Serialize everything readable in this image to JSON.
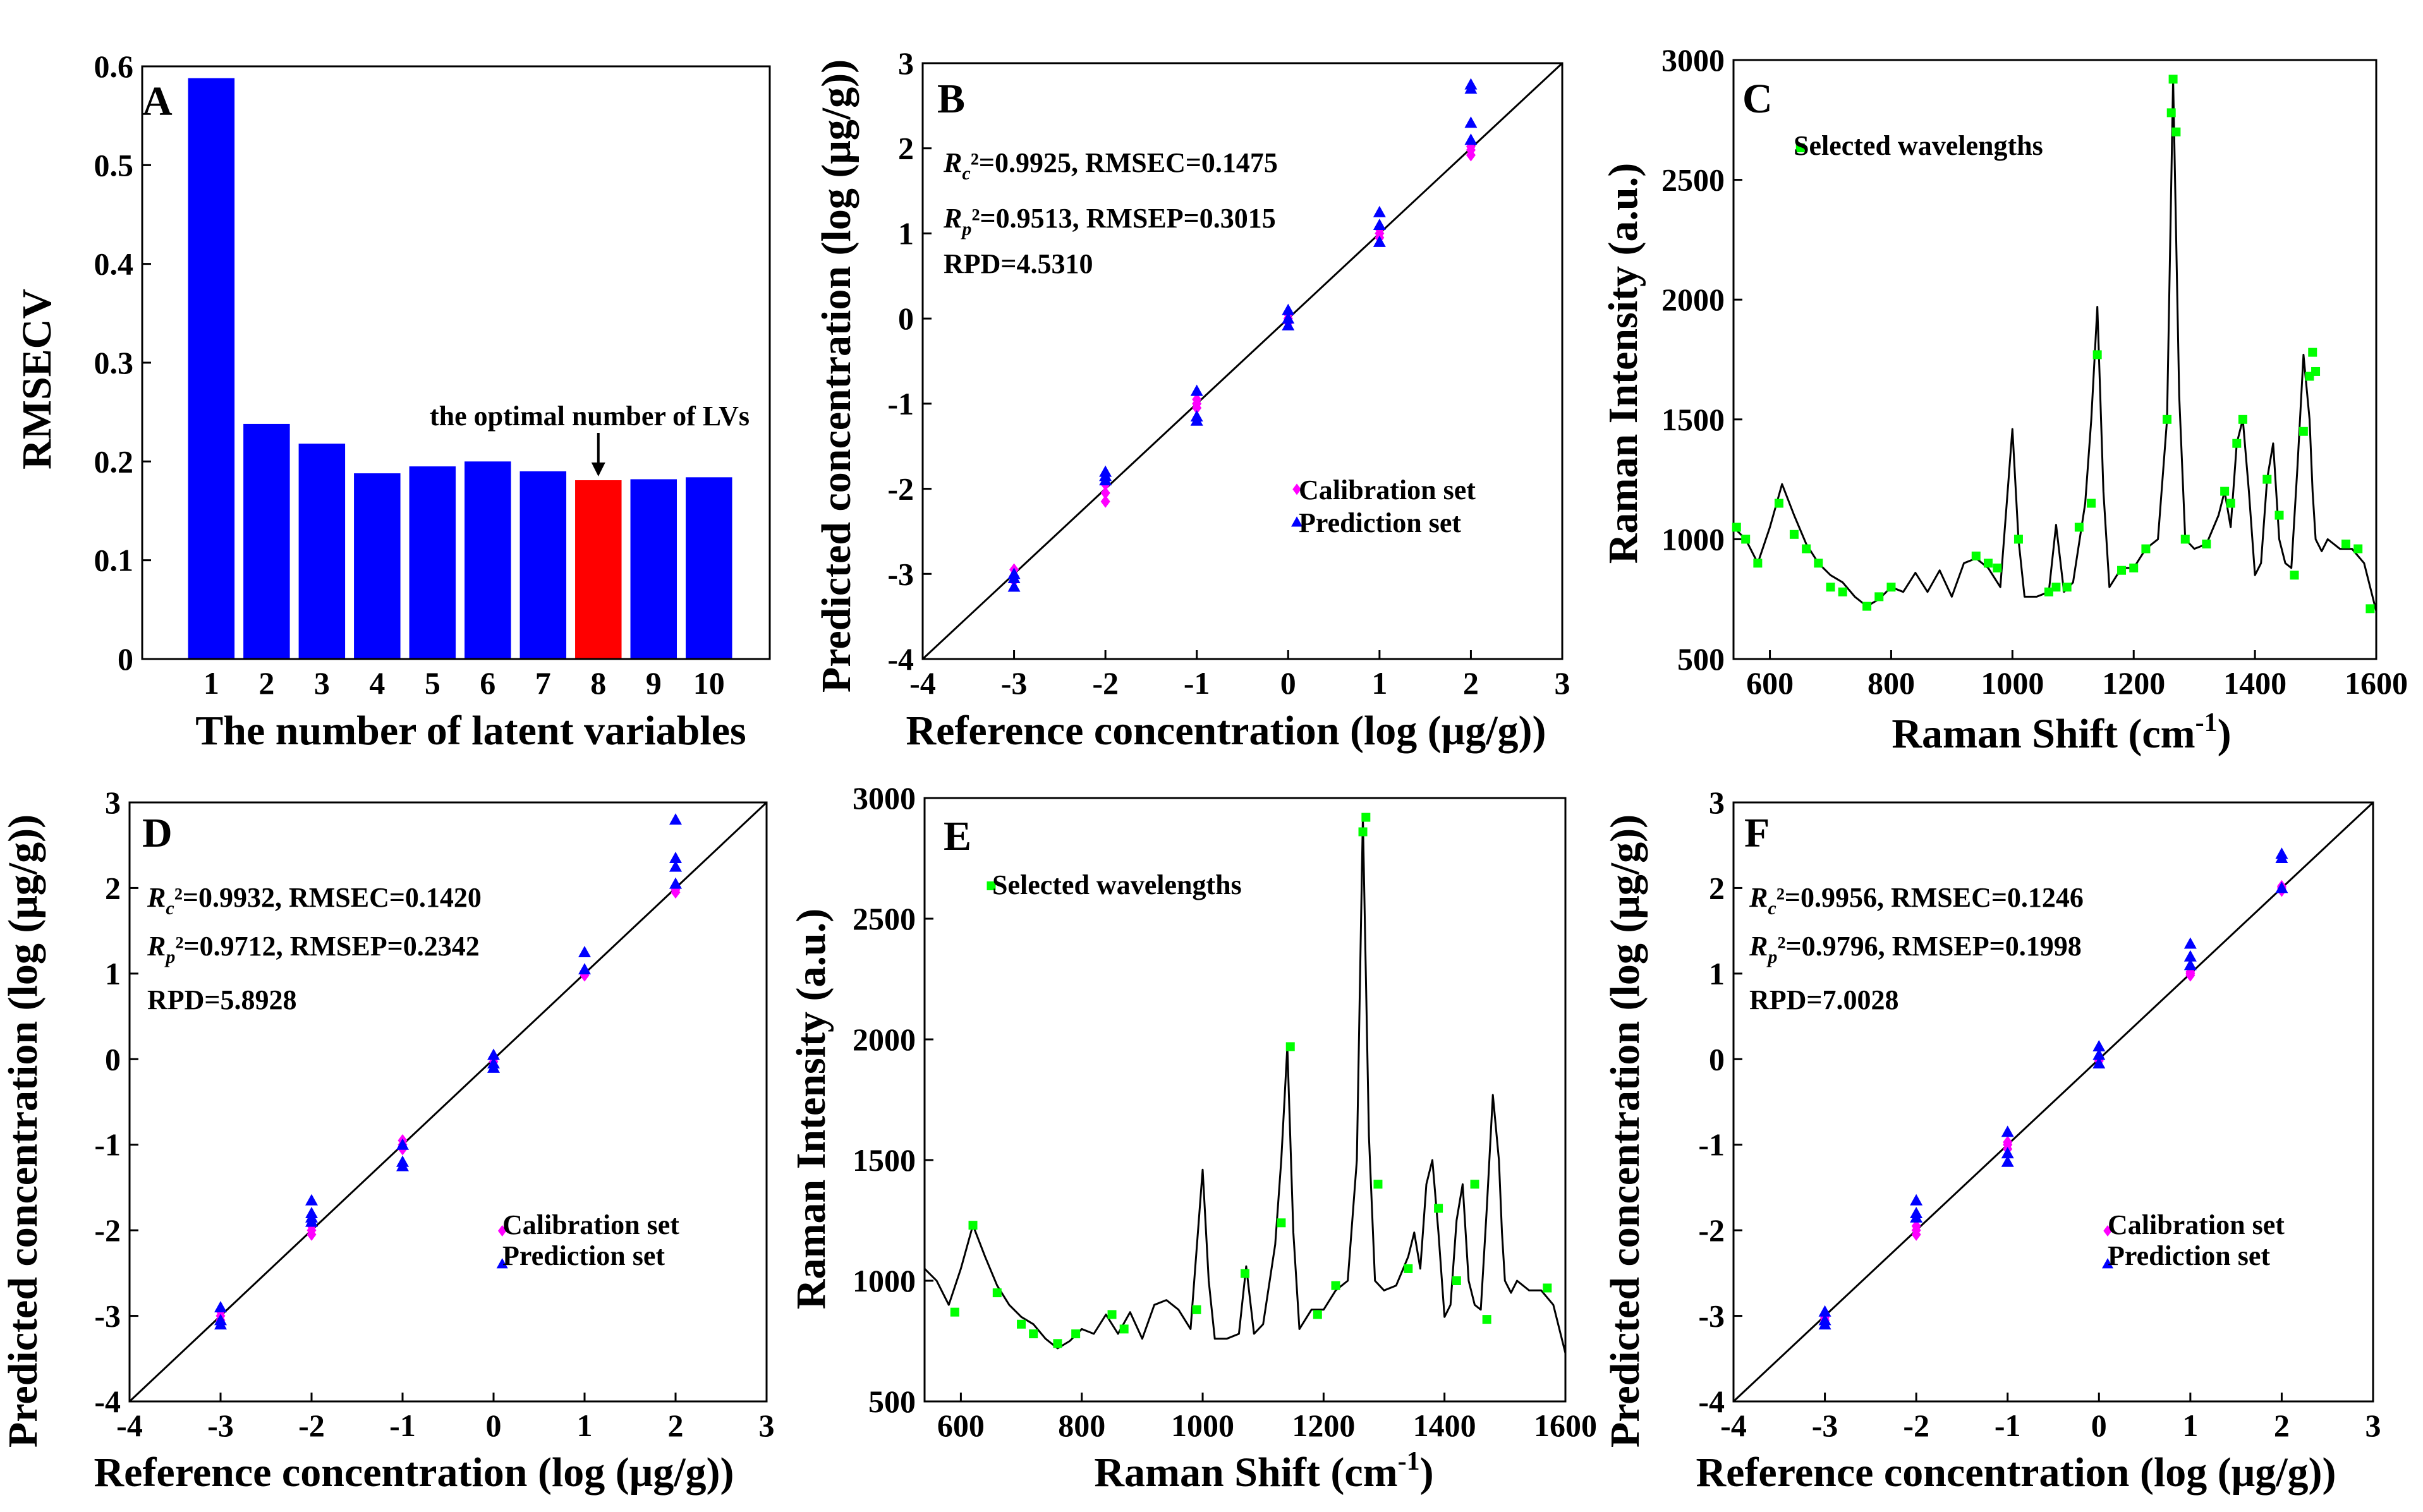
{
  "chart_data": [
    {
      "panel": "A",
      "type": "bar",
      "categories": [
        "1",
        "2",
        "3",
        "4",
        "5",
        "6",
        "7",
        "8",
        "9",
        "10"
      ],
      "values": [
        0.588,
        0.238,
        0.218,
        0.188,
        0.195,
        0.2,
        0.19,
        0.181,
        0.182,
        0.184
      ],
      "highlight_index": 7,
      "bar_color": "#0000ff",
      "highlight_color": "#ff0000",
      "xlabel": "The number of latent variables",
      "ylabel": "RMSECV",
      "ylim": [
        0,
        0.6
      ],
      "yticks": [
        "0",
        "0.1",
        "0.2",
        "0.3",
        "0.4",
        "0.5",
        "0.6"
      ],
      "annotation": "the optimal number of LVs"
    },
    {
      "panel": "B",
      "type": "scatter",
      "xlabel": "Reference concentration (log (μg/g))",
      "ylabel": "Predicted concentration (log (μg/g))",
      "xlim": [
        -4,
        3
      ],
      "ylim": [
        -4,
        3
      ],
      "xticks": [
        "-4",
        "-3",
        "-2",
        "-1",
        "0",
        "1",
        "2",
        "3"
      ],
      "yticks": [
        "-4",
        "-3",
        "-2",
        "-1",
        "0",
        "1",
        "2",
        "3"
      ],
      "stats": {
        "rc_prefix": "R",
        "rc_sub": "c",
        "rc_text": "²=0.9925, RMSEC=0.1475",
        "rp_prefix": "R",
        "rp_sub": "p",
        "rp_text": "²=0.9513, RMSEP=0.3015",
        "rpd": "RPD=4.5310"
      },
      "series": [
        {
          "name": "Calibration set",
          "marker": "diamond",
          "color": "#ff00ff",
          "x": [
            -3,
            -3,
            -3,
            -2,
            -2,
            -2,
            -1,
            -1,
            -1,
            0,
            0,
            0,
            1,
            1,
            1,
            2,
            2,
            2
          ],
          "y": [
            -2.95,
            -3.02,
            -3.08,
            -1.95,
            -2.05,
            -2.15,
            -0.95,
            -1.0,
            -1.05,
            0.0,
            0.05,
            -0.05,
            0.95,
            1.0,
            1.05,
            1.92,
            1.98,
            2.02
          ]
        },
        {
          "name": "Prediction set",
          "marker": "triangle",
          "color": "#0000ff",
          "x": [
            -3,
            -3,
            -3,
            -2,
            -2,
            -2,
            -1,
            -1,
            -1,
            0,
            0,
            0,
            1,
            1,
            1,
            2,
            2,
            2,
            2
          ],
          "y": [
            -3.05,
            -3.15,
            -3.0,
            -1.85,
            -1.9,
            -1.8,
            -0.85,
            -1.15,
            -1.2,
            0.1,
            0.0,
            -0.08,
            0.9,
            1.1,
            1.25,
            2.1,
            2.3,
            2.7,
            2.75
          ]
        }
      ]
    },
    {
      "panel": "C",
      "type": "line",
      "xlabel": "Raman Shift (cm",
      "xlabel_sup": "-1",
      "xlabel_end": ")",
      "ylabel": "Raman Intensity (a.u.)",
      "xlim": [
        540,
        1600
      ],
      "ylim": [
        500,
        3000
      ],
      "xticks": [
        "600",
        "800",
        "1000",
        "1200",
        "1400",
        "1600"
      ],
      "yticks": [
        "500",
        "1000",
        "1500",
        "2000",
        "2500",
        "3000"
      ],
      "legend": "Selected wavelengths",
      "marker_color": "#00ff00",
      "spectrum": {
        "x": [
          540,
          560,
          580,
          600,
          620,
          640,
          660,
          680,
          700,
          720,
          740,
          760,
          780,
          800,
          820,
          840,
          860,
          880,
          900,
          920,
          940,
          960,
          980,
          1000,
          1010,
          1020,
          1040,
          1060,
          1072,
          1085,
          1100,
          1120,
          1130,
          1140,
          1150,
          1160,
          1180,
          1200,
          1220,
          1240,
          1255,
          1265,
          1275,
          1285,
          1300,
          1320,
          1340,
          1350,
          1360,
          1370,
          1380,
          1390,
          1400,
          1410,
          1420,
          1430,
          1440,
          1450,
          1460,
          1470,
          1480,
          1490,
          1495,
          1500,
          1510,
          1520,
          1540,
          1560,
          1580,
          1600
        ],
        "y": [
          1050,
          1000,
          900,
          1050,
          1230,
          1100,
          980,
          900,
          850,
          820,
          760,
          720,
          750,
          800,
          780,
          860,
          780,
          870,
          760,
          900,
          920,
          880,
          800,
          1460,
          1000,
          760,
          760,
          780,
          1060,
          780,
          820,
          1150,
          1500,
          1970,
          1200,
          800,
          880,
          880,
          960,
          1000,
          1500,
          2920,
          1600,
          1000,
          960,
          980,
          1100,
          1200,
          1050,
          1400,
          1500,
          1200,
          850,
          900,
          1250,
          1400,
          1000,
          900,
          880,
          1300,
          1770,
          1500,
          1200,
          1000,
          950,
          1000,
          960,
          960,
          900,
          700
        ]
      },
      "markers_x": [
        545,
        560,
        580,
        615,
        640,
        660,
        680,
        700,
        720,
        760,
        780,
        800,
        940,
        960,
        975,
        1010,
        1060,
        1072,
        1090,
        1110,
        1130,
        1140,
        1180,
        1200,
        1220,
        1255,
        1262,
        1265,
        1270,
        1285,
        1320,
        1350,
        1360,
        1370,
        1380,
        1420,
        1440,
        1465,
        1480,
        1490,
        1495,
        1500,
        1550,
        1570,
        1590
      ],
      "markers_y": [
        1050,
        1000,
        900,
        1150,
        1020,
        960,
        900,
        800,
        780,
        720,
        760,
        800,
        930,
        900,
        880,
        1000,
        780,
        800,
        800,
        1050,
        1150,
        1770,
        870,
        880,
        960,
        1500,
        2780,
        2920,
        2700,
        1000,
        980,
        1200,
        1150,
        1400,
        1500,
        1250,
        1100,
        850,
        1450,
        1680,
        1780,
        1700,
        980,
        960,
        710
      ]
    },
    {
      "panel": "D",
      "type": "scatter",
      "xlabel": "Reference concentration (log (μg/g))",
      "ylabel": "Predicted concentration (log (μg/g))",
      "xlim": [
        -4,
        3
      ],
      "ylim": [
        -4,
        3
      ],
      "xticks": [
        "-4",
        "-3",
        "-2",
        "-1",
        "0",
        "1",
        "2",
        "3"
      ],
      "yticks": [
        "-4",
        "-3",
        "-2",
        "-1",
        "0",
        "1",
        "2",
        "3"
      ],
      "stats": {
        "rc_prefix": "R",
        "rc_sub": "c",
        "rc_text": "²=0.9932, RMSEC=0.1420",
        "rp_prefix": "R",
        "rp_sub": "p",
        "rp_text": "²=0.9712, RMSEP=0.2342",
        "rpd": "RPD=5.8928"
      },
      "series": [
        {
          "name": "Calibration set",
          "marker": "diamond",
          "color": "#ff00ff",
          "x": [
            -3,
            -3,
            -3,
            -2,
            -2,
            -2,
            -1,
            -1,
            -1,
            0,
            0,
            0,
            1,
            1,
            1,
            2,
            2,
            2
          ],
          "y": [
            -2.95,
            -3.0,
            -3.05,
            -1.95,
            -2.0,
            -2.05,
            -0.95,
            -1.0,
            -1.05,
            0.0,
            0.02,
            -0.03,
            0.98,
            1.0,
            1.03,
            1.95,
            1.98,
            2.02
          ]
        },
        {
          "name": "Prediction set",
          "marker": "triangle",
          "color": "#0000ff",
          "x": [
            -3,
            -3,
            -3,
            -2,
            -2,
            -2,
            -2,
            -1,
            -1,
            -1,
            0,
            0,
            0,
            1,
            1,
            2,
            2,
            2,
            2
          ],
          "y": [
            -2.9,
            -3.05,
            -3.1,
            -1.65,
            -1.8,
            -1.9,
            -1.85,
            -1.0,
            -1.2,
            -1.25,
            0.05,
            -0.05,
            -0.1,
            1.05,
            1.25,
            2.05,
            2.25,
            2.35,
            2.8
          ]
        }
      ]
    },
    {
      "panel": "E",
      "type": "line",
      "xlabel": "Raman Shift (cm",
      "xlabel_sup": "-1",
      "xlabel_end": ")",
      "ylabel": "Raman Intensity (a.u.)",
      "xlim": [
        540,
        1600
      ],
      "ylim": [
        500,
        3000
      ],
      "xticks": [
        "600",
        "800",
        "1000",
        "1200",
        "1400",
        "1600"
      ],
      "yticks": [
        "500",
        "1000",
        "1500",
        "2000",
        "2500",
        "3000"
      ],
      "legend": "Selected wavelengths",
      "marker_color": "#00ff00",
      "spectrum": {
        "x": [
          540,
          560,
          580,
          600,
          620,
          640,
          660,
          680,
          700,
          720,
          740,
          760,
          780,
          800,
          820,
          840,
          860,
          880,
          900,
          920,
          940,
          960,
          980,
          1000,
          1010,
          1020,
          1040,
          1060,
          1072,
          1085,
          1100,
          1120,
          1130,
          1140,
          1150,
          1160,
          1180,
          1200,
          1220,
          1240,
          1255,
          1265,
          1275,
          1285,
          1300,
          1320,
          1340,
          1350,
          1360,
          1370,
          1380,
          1390,
          1400,
          1410,
          1420,
          1430,
          1440,
          1450,
          1460,
          1470,
          1480,
          1490,
          1495,
          1500,
          1510,
          1520,
          1540,
          1560,
          1580,
          1600
        ],
        "y": [
          1050,
          1000,
          900,
          1050,
          1230,
          1100,
          980,
          900,
          850,
          820,
          760,
          720,
          750,
          800,
          780,
          860,
          780,
          870,
          760,
          900,
          920,
          880,
          800,
          1460,
          1000,
          760,
          760,
          780,
          1060,
          780,
          820,
          1150,
          1500,
          1970,
          1200,
          800,
          880,
          880,
          960,
          1000,
          1500,
          2920,
          1600,
          1000,
          960,
          980,
          1100,
          1200,
          1050,
          1400,
          1500,
          1200,
          850,
          900,
          1250,
          1400,
          1000,
          900,
          880,
          1300,
          1770,
          1500,
          1200,
          1000,
          950,
          1000,
          960,
          960,
          900,
          700
        ]
      },
      "markers_x": [
        590,
        620,
        660,
        700,
        720,
        760,
        790,
        850,
        870,
        990,
        1070,
        1130,
        1145,
        1190,
        1220,
        1265,
        1270,
        1290,
        1340,
        1390,
        1420,
        1450,
        1470,
        1570
      ],
      "markers_y": [
        870,
        1230,
        950,
        820,
        780,
        740,
        780,
        860,
        800,
        880,
        1030,
        1240,
        1970,
        860,
        980,
        2860,
        2920,
        1400,
        1050,
        1300,
        1000,
        1400,
        840,
        970
      ]
    },
    {
      "panel": "F",
      "type": "scatter",
      "xlabel": "Reference concentration (log (μg/g))",
      "ylabel": "Predicted concentration (log (μg/g))",
      "xlim": [
        -4,
        3
      ],
      "ylim": [
        -4,
        3
      ],
      "xticks": [
        "-4",
        "-3",
        "-2",
        "-1",
        "0",
        "1",
        "2",
        "3"
      ],
      "yticks": [
        "-4",
        "-3",
        "-2",
        "-1",
        "0",
        "1",
        "2",
        "3"
      ],
      "stats": {
        "rc_prefix": "R",
        "rc_sub": "c",
        "rc_text": "²=0.9956, RMSEC=0.1246",
        "rp_prefix": "R",
        "rp_sub": "p",
        "rp_text": "²=0.9796, RMSEP=0.1998",
        "rpd": "RPD=7.0028"
      },
      "series": [
        {
          "name": "Calibration set",
          "marker": "diamond",
          "color": "#ff00ff",
          "x": [
            -3,
            -3,
            -3,
            -2,
            -2,
            -2,
            -1,
            -1,
            -1,
            0,
            0,
            0,
            1,
            1,
            1,
            2,
            2,
            2
          ],
          "y": [
            -2.98,
            -3.02,
            -3.05,
            -1.95,
            -2.0,
            -2.05,
            -0.97,
            -1.0,
            -1.05,
            0.0,
            0.02,
            -0.02,
            0.98,
            1.0,
            1.02,
            1.97,
            2.0,
            2.02
          ]
        },
        {
          "name": "Prediction set",
          "marker": "triangle",
          "color": "#0000ff",
          "x": [
            -3,
            -3,
            -3,
            -2,
            -2,
            -2,
            -1,
            -1,
            -1,
            0,
            0,
            0,
            1,
            1,
            1,
            2,
            2,
            2
          ],
          "y": [
            -2.95,
            -3.05,
            -3.1,
            -1.65,
            -1.8,
            -1.85,
            -0.85,
            -1.1,
            -1.2,
            0.15,
            0.05,
            -0.05,
            1.1,
            1.2,
            1.35,
            2.0,
            2.35,
            2.4
          ]
        }
      ]
    }
  ]
}
